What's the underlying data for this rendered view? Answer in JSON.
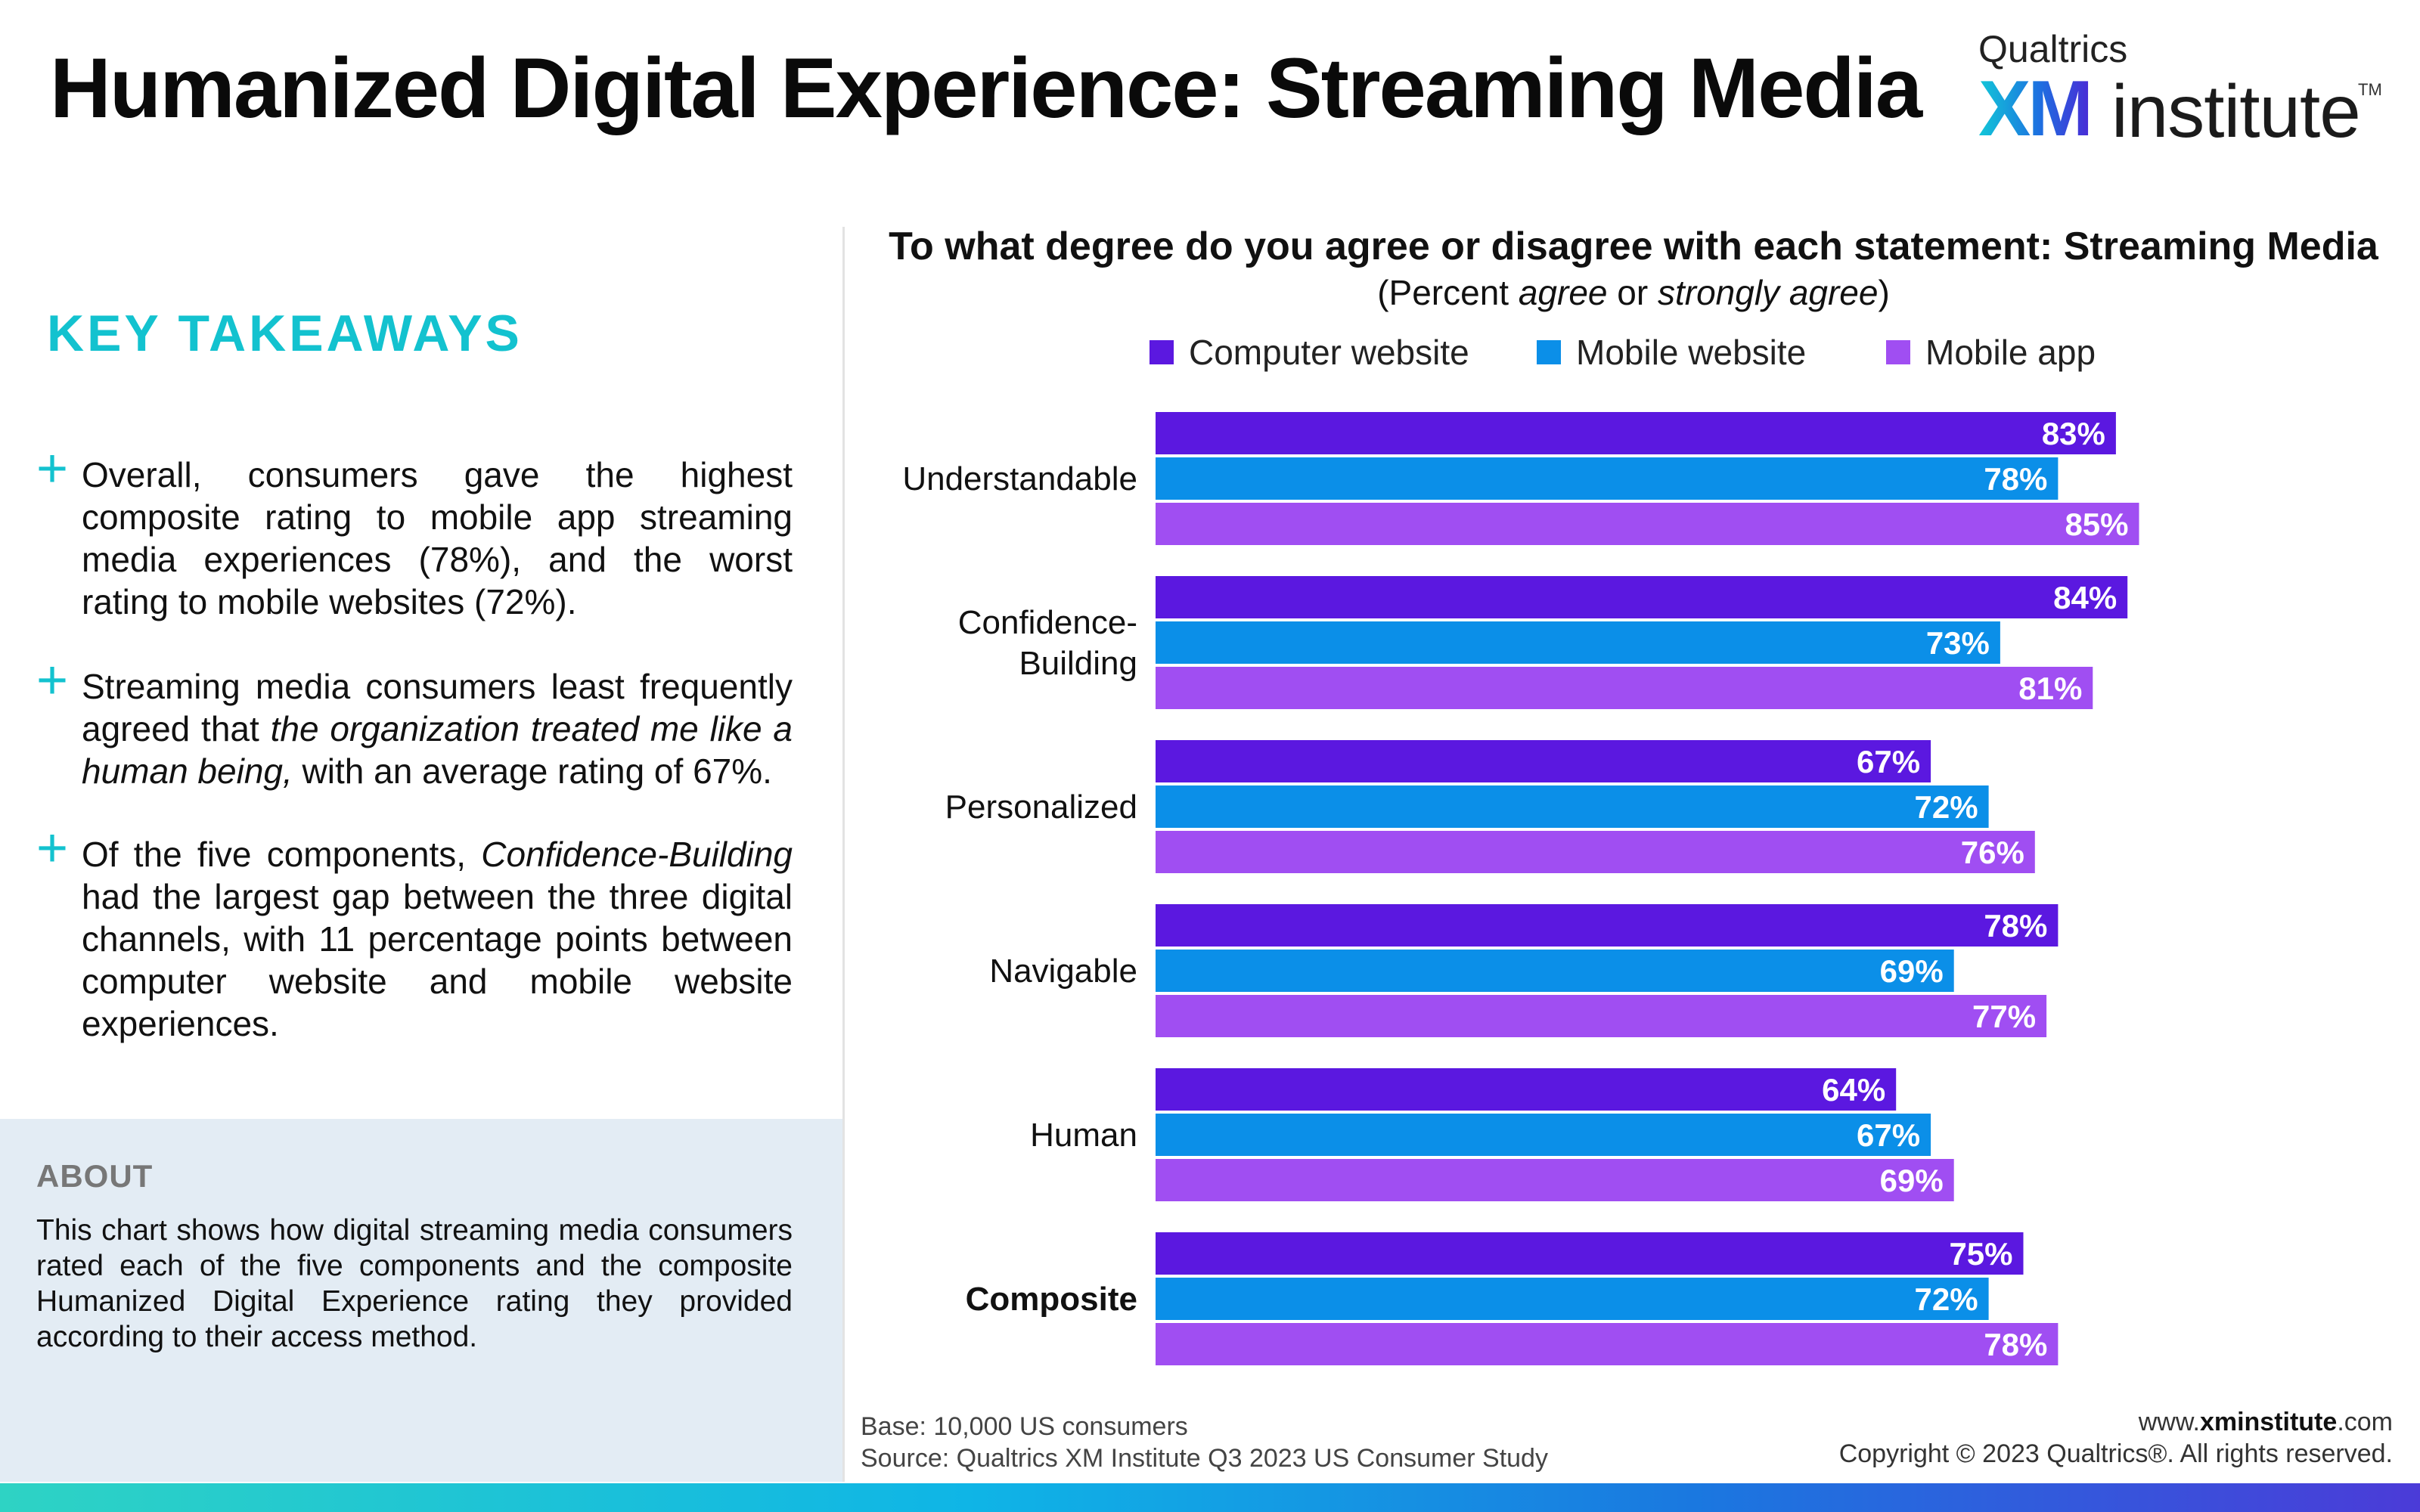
{
  "header": {
    "title": "Humanized Digital Experience: Streaming Media",
    "logo_brand": "Qualtrics",
    "logo_xm": "XM",
    "logo_institute": "institute",
    "logo_tm": "TM"
  },
  "takeaways": {
    "heading": "KEY TAKEAWAYS",
    "items": [
      {
        "before": "Overall, consumers gave the highest composite rating to mobile app streaming media experiences (78%), and the worst rating to mobile websites (72%).",
        "italic": "",
        "after": ""
      },
      {
        "before": "Streaming media consumers least frequently agreed that ",
        "italic": "the organization treated me like a human being,",
        "after": " with an average rating of 67%."
      },
      {
        "before": "Of the five components, ",
        "italic": "Confidence-Building",
        "after": " had the largest gap between the three digital channels, with 11 percentage points between computer website and mobile website experiences."
      }
    ]
  },
  "about": {
    "heading": "ABOUT",
    "text": "This chart shows how digital streaming media consumers rated each of the five components and the composite Humanized Digital Experience rating they provided according to their access method."
  },
  "chart_data": {
    "type": "bar",
    "orientation": "horizontal",
    "title": "To what degree do you agree or disagree with each statement: Streaming Media",
    "subtitle_parts": [
      "(Percent ",
      "agree",
      " or ",
      "strongly agree",
      ")"
    ],
    "categories": [
      "Understandable",
      "Confidence-\nBuilding",
      "Personalized",
      "Navigable",
      "Human",
      "Composite"
    ],
    "series": [
      {
        "name": "Computer website",
        "color": "#5b18e0",
        "values": [
          83,
          84,
          67,
          78,
          64,
          75
        ]
      },
      {
        "name": "Mobile website",
        "color": "#0b8fe8",
        "values": [
          78,
          73,
          72,
          69,
          67,
          72
        ]
      },
      {
        "name": "Mobile app",
        "color": "#a04ef2",
        "values": [
          85,
          81,
          76,
          77,
          69,
          78
        ]
      }
    ],
    "value_suffix": "%",
    "xlim": [
      0,
      100
    ],
    "legend_position": "top",
    "grid": false
  },
  "footer": {
    "base": "Base: 10,000 US consumers",
    "source": "Source: Qualtrics XM Institute Q3 2023 US Consumer Study",
    "url_prefix": "www.",
    "url_bold": "xminstitute",
    "url_suffix": ".com",
    "copyright": "Copyright © 2023 Qualtrics®. All rights reserved."
  }
}
